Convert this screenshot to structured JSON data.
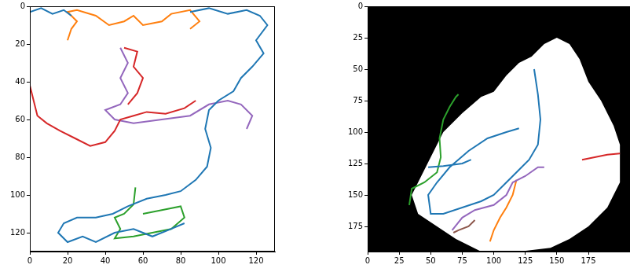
{
  "chart_data": [
    {
      "type": "line",
      "grid": false,
      "xlim": [
        0,
        130
      ],
      "ylim": [
        130,
        0
      ],
      "xticks": [
        0,
        20,
        40,
        60,
        80,
        100,
        120
      ],
      "yticks": [
        0,
        20,
        40,
        60,
        80,
        100,
        120
      ],
      "series": [
        {
          "color": "#1f77b4",
          "x": [
            0,
            6,
            12,
            18,
            22,
            null,
            85,
            95,
            105,
            115,
            122,
            126,
            120,
            124,
            118,
            112,
            108,
            100,
            95,
            93,
            96,
            94,
            88,
            80,
            72,
            62,
            52,
            44,
            35,
            25,
            18,
            15,
            20,
            28,
            35,
            45,
            55,
            65,
            75,
            82
          ],
          "y": [
            3,
            1,
            4,
            2,
            5,
            null,
            3,
            1,
            4,
            2,
            5,
            10,
            18,
            25,
            32,
            38,
            45,
            50,
            55,
            65,
            75,
            85,
            92,
            98,
            100,
            102,
            106,
            110,
            112,
            112,
            115,
            120,
            125,
            122,
            125,
            120,
            118,
            122,
            118,
            115
          ]
        },
        {
          "color": "#ff7f0e",
          "x": [
            20,
            22,
            25,
            20,
            25,
            35,
            42,
            50,
            55,
            60,
            70,
            75,
            85,
            90,
            85
          ],
          "y": [
            18,
            12,
            8,
            3,
            2,
            5,
            10,
            8,
            5,
            10,
            8,
            4,
            2,
            8,
            12
          ]
        },
        {
          "color": "#d62728",
          "x": [
            0,
            2,
            4,
            9,
            16,
            24,
            32,
            40,
            45,
            48,
            55,
            62,
            72,
            82,
            88,
            null,
            50,
            57,
            55,
            60,
            57,
            52
          ],
          "y": [
            42,
            50,
            58,
            62,
            66,
            70,
            74,
            72,
            66,
            60,
            58,
            56,
            57,
            54,
            50,
            null,
            22,
            24,
            32,
            38,
            46,
            52
          ]
        },
        {
          "color": "#9467bd",
          "x": [
            48,
            52,
            48,
            52,
            48,
            40,
            45,
            55,
            70,
            85,
            95,
            105,
            112,
            118,
            115
          ],
          "y": [
            22,
            30,
            38,
            46,
            52,
            55,
            60,
            62,
            60,
            58,
            52,
            50,
            52,
            58,
            65
          ]
        },
        {
          "color": "#2ca02c",
          "x": [
            56,
            55,
            50,
            45,
            48,
            45,
            55,
            65,
            75,
            82,
            80,
            70,
            60
          ],
          "y": [
            96,
            105,
            110,
            112,
            118,
            123,
            122,
            120,
            118,
            112,
            106,
            108,
            110
          ]
        }
      ]
    },
    {
      "type": "line",
      "grid": false,
      "xlim": [
        0,
        208
      ],
      "ylim": [
        195,
        0
      ],
      "xticks": [
        0,
        25,
        50,
        75,
        100,
        125,
        150,
        175
      ],
      "yticks": [
        0,
        25,
        50,
        75,
        100,
        125,
        150,
        175
      ],
      "free_space": {
        "x": [
          35,
          50,
          60,
          75,
          90,
          100,
          110,
          120,
          130,
          140,
          150,
          160,
          168,
          175,
          185,
          195,
          200,
          200,
          190,
          175,
          160,
          145,
          120,
          90,
          70,
          55,
          40,
          35
        ],
        "y": [
          150,
          120,
          100,
          85,
          72,
          68,
          55,
          45,
          40,
          30,
          25,
          30,
          42,
          60,
          75,
          95,
          110,
          140,
          160,
          175,
          185,
          192,
          195,
          195,
          185,
          175,
          165,
          150
        ]
      },
      "series": [
        {
          "color": "#1f77b4",
          "x": [
            132,
            135,
            137,
            135,
            128,
            120,
            110,
            100,
            90,
            75,
            60,
            50,
            48,
            55,
            65,
            80,
            95,
            110,
            120,
            null,
            48,
            60,
            75,
            82
          ],
          "y": [
            50,
            70,
            90,
            110,
            122,
            130,
            140,
            150,
            155,
            160,
            165,
            165,
            150,
            140,
            128,
            115,
            105,
            100,
            97,
            null,
            128,
            127,
            125,
            122
          ]
        },
        {
          "color": "#2ca02c",
          "x": [
            33,
            35,
            45,
            55,
            58,
            57,
            60,
            65,
            70,
            72
          ],
          "y": [
            158,
            145,
            140,
            132,
            120,
            105,
            90,
            80,
            72,
            70
          ]
        },
        {
          "color": "#d62728",
          "x": [
            170,
            180,
            190,
            200
          ],
          "y": [
            122,
            120,
            118,
            117
          ]
        },
        {
          "color": "#9467bd",
          "x": [
            67,
            75,
            85,
            100,
            110,
            115,
            125,
            135,
            140
          ],
          "y": [
            178,
            168,
            162,
            158,
            150,
            140,
            135,
            128,
            128
          ]
        },
        {
          "color": "#ff7f0e",
          "x": [
            97,
            100,
            105,
            110,
            115,
            118
          ],
          "y": [
            187,
            178,
            168,
            160,
            150,
            138
          ]
        },
        {
          "color": "#8c564b",
          "x": [
            68,
            72,
            80,
            85
          ],
          "y": [
            180,
            178,
            175,
            170
          ]
        }
      ]
    }
  ]
}
